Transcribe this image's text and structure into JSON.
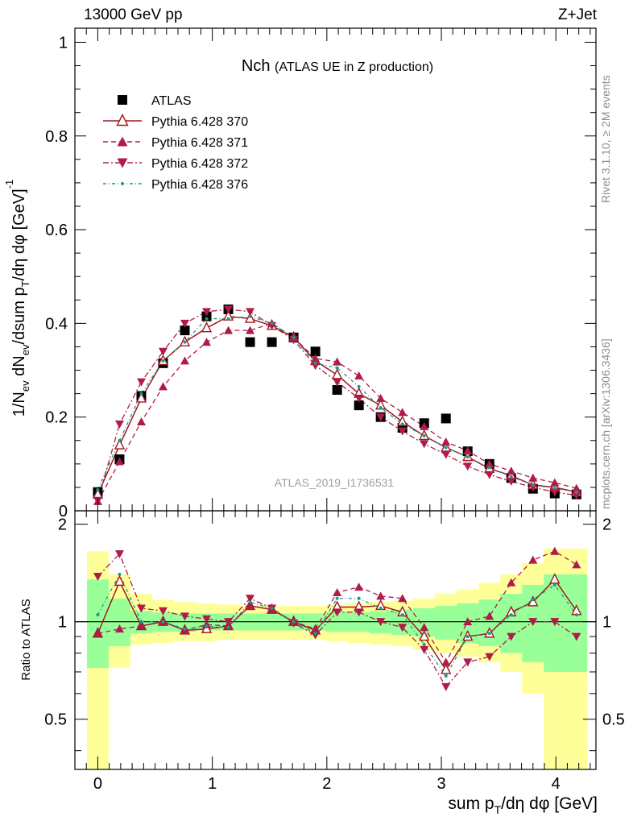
{
  "header": {
    "left": "13000 GeV pp",
    "right": "Z+Jet"
  },
  "side": {
    "top": "Rivet 3.1.10, ≥ 2M events",
    "bottom": "mcplots.cern.ch [arXiv:1306.3436]"
  },
  "watermark": "ATLAS_2019_I1736531",
  "colors": {
    "atlas": "#000000",
    "p370": "#a0191e",
    "p371": "#b01c4a",
    "p372": "#b01c4a",
    "p376": "#1a9b87",
    "band_outer": "#ffff99",
    "band_inner": "#99ff99"
  },
  "chart_data": [
    {
      "type": "scatter",
      "title": "Nch",
      "subtitle": "(ATLAS UE in Z production)",
      "ylabel": "1/N_ev dN_ev/dsum p_T/dη dφ [GeV]^-1",
      "xlim": [
        -0.2,
        4.35
      ],
      "ylim": [
        0,
        1.03
      ],
      "yticks": [
        "0",
        "0.2",
        "0.4",
        "0.6",
        "0.8",
        "1"
      ],
      "legend": "top-left",
      "x": [
        0.0,
        0.19,
        0.38,
        0.57,
        0.76,
        0.95,
        1.14,
        1.33,
        1.52,
        1.71,
        1.9,
        2.09,
        2.28,
        2.47,
        2.66,
        2.85,
        3.04,
        3.23,
        3.42,
        3.61,
        3.8,
        3.99,
        4.18
      ],
      "series": [
        {
          "name": "ATLAS",
          "marker": "square",
          "values": [
            0.04,
            0.11,
            0.245,
            0.315,
            0.385,
            0.415,
            0.43,
            0.36,
            0.36,
            0.37,
            0.34,
            0.258,
            0.225,
            0.2,
            0.177,
            0.187,
            0.197,
            0.127,
            0.1,
            0.07,
            0.047,
            0.037,
            0.035
          ]
        },
        {
          "name": "Pythia 6.428 370",
          "marker": "open-triangle-up",
          "line": "solid",
          "values": [
            0.035,
            0.14,
            0.24,
            0.32,
            0.36,
            0.39,
            0.415,
            0.41,
            0.395,
            0.37,
            0.32,
            0.29,
            0.25,
            0.225,
            0.19,
            0.16,
            0.135,
            0.115,
            0.09,
            0.075,
            0.055,
            0.05,
            0.04
          ]
        },
        {
          "name": "Pythia 6.428 371",
          "marker": "triangle-up",
          "line": "dashed",
          "values": [
            0.02,
            0.105,
            0.19,
            0.265,
            0.32,
            0.36,
            0.385,
            0.385,
            0.4,
            0.37,
            0.325,
            0.318,
            0.288,
            0.24,
            0.21,
            0.18,
            0.147,
            0.128,
            0.1,
            0.085,
            0.07,
            0.06,
            0.048
          ]
        },
        {
          "name": "Pythia 6.428 372",
          "marker": "triangle-down",
          "line": "dashdot",
          "values": [
            0.022,
            0.185,
            0.275,
            0.34,
            0.4,
            0.425,
            0.43,
            0.425,
            0.395,
            0.365,
            0.31,
            0.275,
            0.24,
            0.2,
            0.17,
            0.143,
            0.12,
            0.095,
            0.077,
            0.063,
            0.05,
            0.04,
            0.033
          ]
        },
        {
          "name": "Pythia 6.428 376",
          "marker": "dot",
          "line": "dashdot-fine",
          "values": [
            0.045,
            0.15,
            0.25,
            0.32,
            0.36,
            0.41,
            0.41,
            0.415,
            0.4,
            0.37,
            0.315,
            0.305,
            0.265,
            0.22,
            0.185,
            0.16,
            0.135,
            0.115,
            0.092,
            0.073,
            0.055,
            0.048,
            0.04
          ]
        }
      ]
    },
    {
      "type": "line",
      "ylabel": "Ratio to ATLAS",
      "xlabel": "sum p_T/dη dφ [GeV]",
      "xlim": [
        -0.2,
        4.35
      ],
      "ylim": [
        0.35,
        2.2
      ],
      "yscale": "log",
      "yticks": [
        "0.5",
        "1",
        "2"
      ],
      "xticks": [
        "0",
        "1",
        "2",
        "3",
        "4"
      ],
      "reference_line": 1,
      "x": [
        0.0,
        0.19,
        0.38,
        0.57,
        0.76,
        0.95,
        1.14,
        1.33,
        1.52,
        1.71,
        1.9,
        2.09,
        2.28,
        2.47,
        2.66,
        2.85,
        3.04,
        3.23,
        3.42,
        3.61,
        3.8,
        3.99,
        4.18
      ],
      "bands": {
        "outer_low": [
          0.35,
          0.72,
          0.85,
          0.86,
          0.87,
          0.87,
          0.88,
          0.88,
          0.88,
          0.88,
          0.88,
          0.87,
          0.86,
          0.85,
          0.84,
          0.82,
          0.8,
          0.78,
          0.75,
          0.7,
          0.6,
          0.35,
          0.35
        ],
        "outer_high": [
          1.65,
          1.4,
          1.22,
          1.17,
          1.15,
          1.14,
          1.13,
          1.12,
          1.12,
          1.12,
          1.12,
          1.13,
          1.14,
          1.15,
          1.16,
          1.18,
          1.22,
          1.26,
          1.32,
          1.4,
          1.52,
          1.68,
          1.68
        ],
        "inner_low": [
          0.72,
          0.84,
          0.92,
          0.93,
          0.93,
          0.94,
          0.94,
          0.94,
          0.94,
          0.94,
          0.94,
          0.93,
          0.93,
          0.92,
          0.91,
          0.9,
          0.88,
          0.86,
          0.84,
          0.8,
          0.75,
          0.7,
          0.7
        ],
        "inner_high": [
          1.35,
          1.18,
          1.08,
          1.07,
          1.06,
          1.06,
          1.06,
          1.06,
          1.06,
          1.06,
          1.06,
          1.07,
          1.07,
          1.08,
          1.09,
          1.1,
          1.12,
          1.14,
          1.17,
          1.22,
          1.3,
          1.4,
          1.4
        ]
      },
      "series": [
        {
          "name": "Pythia 6.428 370",
          "values": [
            0.92,
            1.33,
            0.97,
            1.0,
            0.94,
            0.95,
            0.97,
            1.12,
            1.09,
            1.0,
            0.94,
            1.11,
            1.11,
            1.12,
            1.07,
            0.9,
            0.71,
            0.9,
            0.92,
            1.07,
            1.15,
            1.35,
            1.08
          ]
        },
        {
          "name": "Pythia 6.428 371",
          "values": [
            0.92,
            0.95,
            0.97,
            1.0,
            0.94,
            0.98,
            0.97,
            1.12,
            1.09,
            1.0,
            0.95,
            1.23,
            1.28,
            1.2,
            1.18,
            0.96,
            0.75,
            1.0,
            1.04,
            1.32,
            1.55,
            1.65,
            1.5
          ]
        },
        {
          "name": "Pythia 6.428 372",
          "values": [
            1.38,
            1.62,
            1.1,
            1.08,
            1.04,
            1.02,
            1.0,
            1.18,
            1.1,
            0.99,
            0.91,
            1.07,
            1.07,
            1.0,
            0.96,
            0.82,
            0.63,
            0.75,
            0.78,
            0.9,
            1.0,
            1.0,
            0.9
          ]
        },
        {
          "name": "Pythia 6.428 376",
          "values": [
            1.05,
            1.4,
            1.0,
            1.0,
            0.95,
            0.97,
            0.96,
            1.15,
            1.1,
            1.0,
            0.92,
            1.18,
            1.18,
            1.1,
            1.05,
            0.85,
            0.68,
            0.9,
            0.92,
            1.05,
            1.17,
            1.3,
            1.05
          ]
        }
      ]
    }
  ]
}
